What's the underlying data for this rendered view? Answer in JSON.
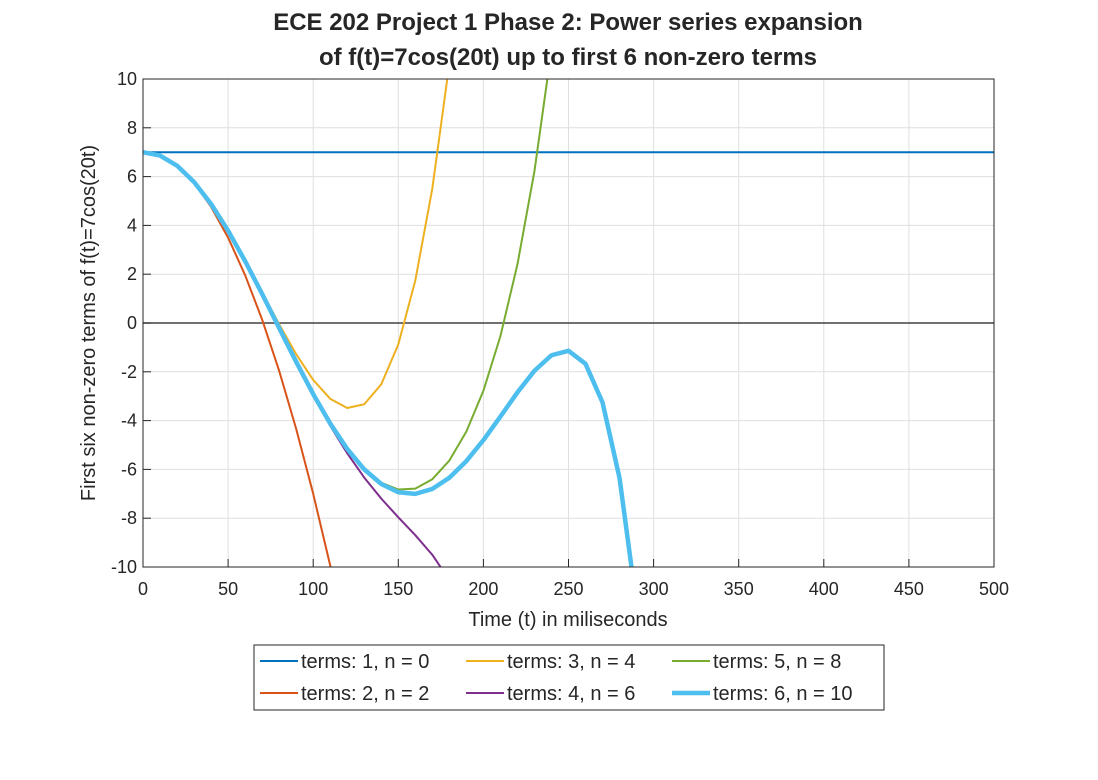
{
  "chart_data": {
    "type": "line",
    "title": [
      "ECE 202 Project 1 Phase 2: Power series expansion",
      "of f(t)=7cos(20t) up to first 6 non-zero terms"
    ],
    "x_label": "Time (t) in miliseconds",
    "y_label": "First six non-zero terms of f(t)=7cos(20t)",
    "xlim": [
      0,
      500
    ],
    "ylim": [
      -10,
      10
    ],
    "xticks": [
      0,
      50,
      100,
      150,
      200,
      250,
      300,
      350,
      400,
      450,
      500
    ],
    "yticks": [
      -10,
      -8,
      -6,
      -4,
      -2,
      0,
      2,
      4,
      6,
      8,
      10
    ],
    "grid": true,
    "zero_line": true,
    "legend": "below",
    "series": [
      {
        "name": "terms: 1, n = 0",
        "color": "#0072bd",
        "width": 2,
        "x": [
          0,
          500
        ],
        "values": [
          7,
          7
        ]
      },
      {
        "name": "terms: 2, n = 2",
        "color": "#d95319",
        "width": 2,
        "x": [
          0,
          10,
          20,
          30,
          40,
          50,
          60,
          70,
          80,
          90,
          100,
          110,
          120
        ],
        "values": [
          7,
          6.86,
          6.44,
          5.74,
          4.76,
          3.5,
          1.96,
          0.14,
          -1.96,
          -4.34,
          -7,
          -9.94,
          -13.16
        ]
      },
      {
        "name": "terms: 3, n = 4",
        "color": "#edb120",
        "width": 2,
        "x": [
          0,
          10,
          20,
          30,
          40,
          50,
          60,
          70,
          80,
          90,
          100,
          110,
          120,
          130,
          140,
          150,
          160,
          170,
          180
        ],
        "values": [
          7,
          6.8605,
          6.4475,
          5.7778,
          4.8795,
          3.7917,
          2.5648,
          1.2605,
          -0.0485,
          -1.2782,
          -2.3333,
          -3.1075,
          -3.4832,
          -3.3315,
          -2.5125,
          -0.875,
          1.7435,
          5.5165,
          10.6288
        ]
      },
      {
        "name": "terms: 4, n = 6",
        "color": "#7e2f8e",
        "width": 2,
        "x": [
          0,
          10,
          20,
          30,
          40,
          50,
          60,
          70,
          80,
          90,
          100,
          110,
          120,
          130,
          140,
          150,
          160,
          170,
          180
        ],
        "values": [
          7,
          6.8605,
          6.4474,
          5.7773,
          4.8769,
          3.7819,
          2.5358,
          1.1873,
          -0.2116,
          -1.6089,
          -2.9556,
          -4.2098,
          -5.3411,
          -6.3349,
          -7.1976,
          -7.9625,
          -8.6957,
          -9.5025,
          -10.5344
        ]
      },
      {
        "name": "terms: 5, n = 8",
        "color": "#77ac30",
        "width": 2,
        "x": [
          0,
          10,
          20,
          30,
          40,
          50,
          60,
          70,
          80,
          90,
          100,
          110,
          120,
          130,
          140,
          150,
          160,
          170,
          180,
          190,
          200,
          210,
          220,
          230,
          240
        ],
        "values": [
          7,
          6.8605,
          6.4474,
          5.7773,
          4.877,
          3.7821,
          2.5365,
          1.1898,
          -0.2042,
          -1.5897,
          -2.9111,
          -4.1146,
          -5.15,
          -5.9724,
          -6.5417,
          -6.8235,
          -6.7868,
          -6.402,
          -5.6366,
          -4.4483,
          -2.7778,
          -0.5376,
          2.4016,
          6.2269,
          11.2022
        ]
      },
      {
        "name": "terms: 6, n = 10",
        "color": "#4dbeee",
        "width": 4.5,
        "x": [
          0,
          10,
          20,
          30,
          40,
          50,
          60,
          70,
          80,
          90,
          100,
          110,
          120,
          130,
          140,
          150,
          160,
          170,
          180,
          190,
          200,
          210,
          220,
          230,
          240,
          250,
          260,
          270,
          280,
          290
        ],
        "values": [
          7,
          6.8605,
          6.4474,
          5.7773,
          4.8769,
          3.7821,
          2.5365,
          1.1898,
          -0.2044,
          -1.5904,
          -2.9131,
          -4.1197,
          -5.1623,
          -5.9996,
          -6.5988,
          -6.9374,
          -7.004,
          -6.8002,
          -6.3419,
          -5.6594,
          -4.8005,
          -3.8324,
          -2.8448,
          -1.9562,
          -1.3219,
          -1.1392,
          -1.6727,
          -3.2591,
          -6.3585,
          -11.5584
        ]
      }
    ]
  }
}
